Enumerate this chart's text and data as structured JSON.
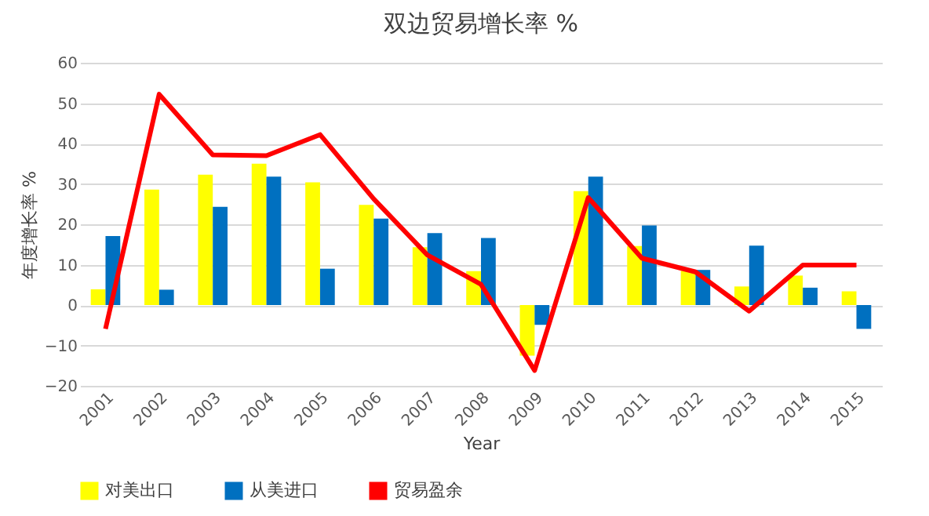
{
  "chart_data": {
    "type": "bar",
    "title": "双边贸易增长率 %",
    "xlabel": "Year",
    "ylabel": "年度增长率 %",
    "categories": [
      "2001",
      "2002",
      "2003",
      "2004",
      "2005",
      "2006",
      "2007",
      "2008",
      "2009",
      "2010",
      "2011",
      "2012",
      "2013",
      "2014",
      "2015"
    ],
    "series": [
      {
        "name": "对美出口",
        "type": "bar",
        "color": "#ffff00",
        "values": [
          3.9,
          28.6,
          32.3,
          35,
          30.4,
          24.8,
          14.3,
          8.4,
          -12.5,
          28.2,
          14.6,
          8.5,
          4.6,
          7.3,
          3.4
        ]
      },
      {
        "name": "从美进口",
        "type": "bar",
        "color": "#0070c0",
        "values": [
          17.1,
          3.8,
          24.3,
          31.8,
          9,
          21.4,
          17.8,
          16.6,
          -4.9,
          31.8,
          19.7,
          8.7,
          14.7,
          4.3,
          -5.9
        ]
      },
      {
        "name": "贸易盈余",
        "type": "line",
        "color": "#ff0000",
        "values": [
          -5.9,
          52.2,
          37.2,
          37,
          42.2,
          26.3,
          12.4,
          5.1,
          -16.2,
          26.6,
          11.6,
          8.2,
          -1.5,
          9.9,
          9.9
        ]
      }
    ],
    "ylim": [
      -20,
      60
    ],
    "yticks": [
      -20,
      -10,
      0,
      10,
      20,
      30,
      40,
      50,
      60
    ],
    "grid": "y",
    "legend": "bottom"
  }
}
